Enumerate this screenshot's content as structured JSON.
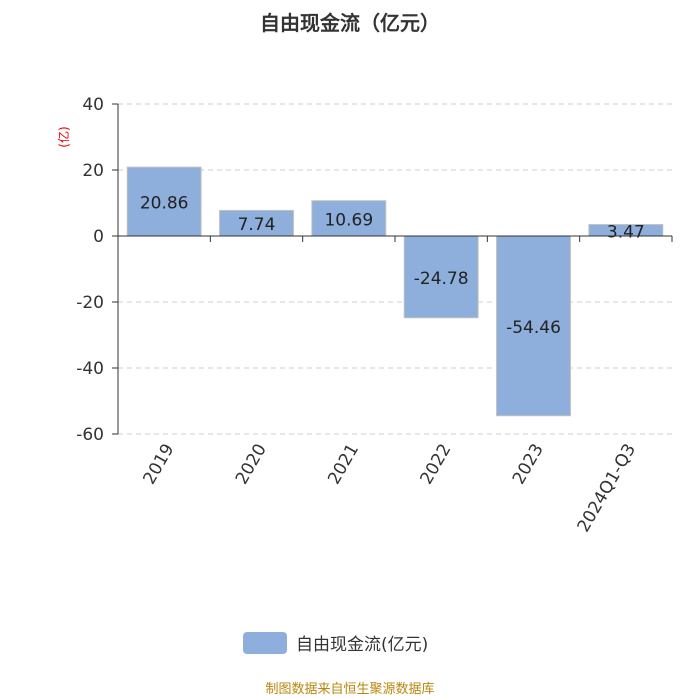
{
  "chart_data": {
    "type": "bar",
    "title": "自由现金流（亿元）",
    "ylabel": "(亿)",
    "categories": [
      "2019",
      "2020",
      "2021",
      "2022",
      "2023",
      "2024Q1-Q3"
    ],
    "series": [
      {
        "name": "自由现金流(亿元)",
        "values": [
          20.86,
          7.74,
          10.69,
          -24.78,
          -54.46,
          3.47
        ],
        "labels": [
          "20.86",
          "7.74",
          "10.69",
          "-24.78",
          "-54.46",
          "3.47"
        ]
      }
    ],
    "ylim": [
      -60,
      40
    ],
    "yticks": [
      40,
      20,
      0,
      -20,
      -40,
      -60
    ],
    "grid": true,
    "legend_position": "bottom",
    "bar_color": "#8EAEDB",
    "label_color": "#C0C0C0"
  },
  "footer": {
    "source": "制图数据来自恒生聚源数据库"
  },
  "colors": {
    "axis_label": "#E60000",
    "source_text": "#B8860B"
  }
}
